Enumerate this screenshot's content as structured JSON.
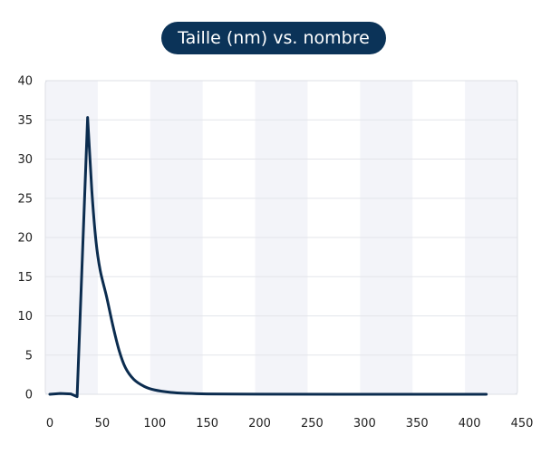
{
  "chart_data": {
    "type": "line",
    "title": "Taille (nm) vs. nombre",
    "xlabel": "",
    "ylabel": "",
    "xlim": [
      0,
      450
    ],
    "ylim": [
      0,
      40
    ],
    "x_ticks": [
      0,
      50,
      100,
      150,
      200,
      250,
      300,
      350,
      400,
      450
    ],
    "y_ticks": [
      0,
      5,
      10,
      15,
      20,
      25,
      30,
      35,
      40
    ],
    "grid": true,
    "alternating_bands": true,
    "series": [
      {
        "color": "#0b2c4f",
        "points": [
          {
            "x": 0,
            "y": 0
          },
          {
            "x": 10,
            "y": 0.1
          },
          {
            "x": 20,
            "y": 0.05
          },
          {
            "x": 26,
            "y": -0.3
          },
          {
            "x": 36,
            "y": 35.3
          },
          {
            "x": 40,
            "y": 26
          },
          {
            "x": 44,
            "y": 19.5
          },
          {
            "x": 48,
            "y": 15.8
          },
          {
            "x": 54,
            "y": 12.5
          },
          {
            "x": 60,
            "y": 8.8
          },
          {
            "x": 66,
            "y": 5.6
          },
          {
            "x": 72,
            "y": 3.4
          },
          {
            "x": 80,
            "y": 1.9
          },
          {
            "x": 90,
            "y": 1.0
          },
          {
            "x": 100,
            "y": 0.55
          },
          {
            "x": 115,
            "y": 0.25
          },
          {
            "x": 130,
            "y": 0.12
          },
          {
            "x": 150,
            "y": 0.05
          },
          {
            "x": 200,
            "y": 0.01
          },
          {
            "x": 300,
            "y": 0.0
          },
          {
            "x": 416,
            "y": 0.0
          }
        ]
      }
    ]
  },
  "colors": {
    "title_background": "#0b3358",
    "title_text": "#ffffff",
    "line": "#0b2c4f",
    "band": "#f3f4f9",
    "gridline": "#e3e5ea",
    "frame": "#dcdfe5"
  }
}
